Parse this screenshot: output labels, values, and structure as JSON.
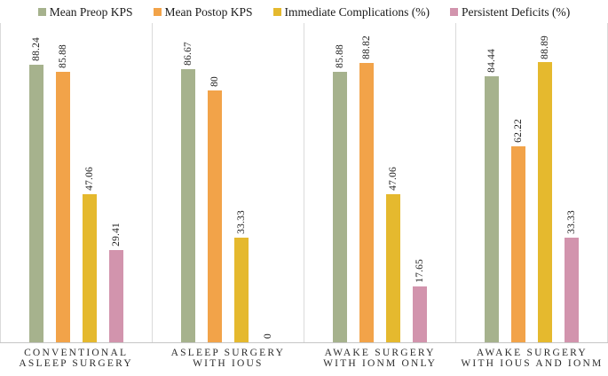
{
  "chart_data": {
    "type": "bar",
    "title": "",
    "xlabel": "",
    "ylabel": "",
    "ylim": [
      0,
      100
    ],
    "grid": false,
    "legend_position": "top",
    "value_label_rotation": 90,
    "categories": [
      "CONVENTIONAL ASLEEP SURGERY",
      "ASLEEP SURGERY WITH IOUS",
      "AWAKE SURGERY WITH IONM ONLY",
      "AWAKE SURGERY WITH IOUS AND IONM"
    ],
    "category_lines": [
      [
        "CONVENTIONAL",
        "ASLEEP SURGERY"
      ],
      [
        "ASLEEP SURGERY",
        "WITH IOUS"
      ],
      [
        "AWAKE SURGERY",
        "WITH IONM ONLY"
      ],
      [
        "AWAKE SURGERY",
        "WITH IOUS AND IONM"
      ]
    ],
    "series": [
      {
        "name": "Mean Preop KPS",
        "color": "#a6b28d",
        "values": [
          88.24,
          86.67,
          85.88,
          84.44
        ]
      },
      {
        "name": "Mean Postop KPS",
        "color": "#f2a349",
        "values": [
          85.88,
          80.0,
          88.82,
          62.22
        ]
      },
      {
        "name": "Immediate Complications (%)",
        "color": "#e5b92e",
        "values": [
          47.06,
          33.33,
          47.06,
          88.89
        ]
      },
      {
        "name": "Persistent Deficits (%)",
        "color": "#d294ad",
        "values": [
          29.41,
          0.0,
          17.65,
          33.33
        ]
      }
    ],
    "value_labels": [
      [
        "88.24",
        "85.88",
        "47.06",
        "29.41"
      ],
      [
        "86.67",
        "80",
        "33.33",
        "0"
      ],
      [
        "85.88",
        "88.82",
        "47.06",
        "17.65"
      ],
      [
        "84.44",
        "62.22",
        "88.89",
        "33.33"
      ]
    ]
  },
  "colors": {
    "background": "#ffffff",
    "panel_border": "#dadada",
    "axis_line": "#c6c6c6",
    "text": "#1a1a1a"
  }
}
